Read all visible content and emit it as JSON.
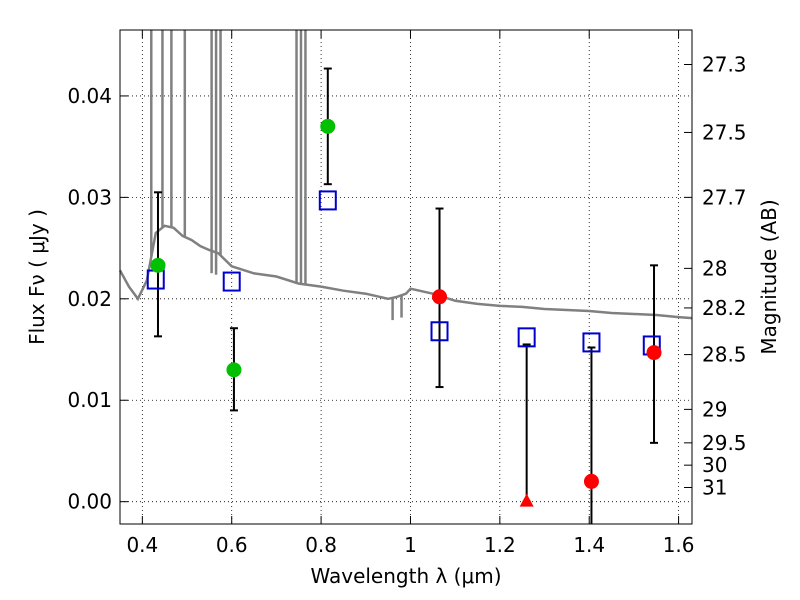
{
  "chart_data": {
    "type": "scatter",
    "xlabel": "Wavelength  λ (μm)",
    "ylabel_left": "Flux  Fν  ( μJy )",
    "ylabel_right": "Magnitude (AB)",
    "xlim": [
      0.35,
      1.63
    ],
    "ylim": [
      -0.0022,
      0.0465
    ],
    "x_ticks": [
      0.4,
      0.6,
      0.8,
      1.0,
      1.2,
      1.4,
      1.6
    ],
    "x_tick_labels": [
      "0.4",
      "0.6",
      "0.8",
      "1",
      "1.2",
      "1.4",
      "1.6"
    ],
    "y_ticks": [
      0.0,
      0.01,
      0.02,
      0.03,
      0.04
    ],
    "y_tick_labels": [
      "0.00",
      "0.01",
      "0.02",
      "0.03",
      "0.04"
    ],
    "right_ticks": [
      {
        "label": "27.3",
        "flux": 0.0431
      },
      {
        "label": "27.5",
        "flux": 0.0364
      },
      {
        "label": "27.7",
        "flux": 0.03
      },
      {
        "label": "28",
        "flux": 0.023
      },
      {
        "label": "28.2",
        "flux": 0.0191
      },
      {
        "label": "28.5",
        "flux": 0.0145
      },
      {
        "label": "29",
        "flux": 0.0091
      },
      {
        "label": "29.5",
        "flux": 0.0058
      },
      {
        "label": "30",
        "flux": 0.0036
      },
      {
        "label": "31",
        "flux": 0.0014
      }
    ],
    "grid": true,
    "colors": {
      "model": "#808080",
      "green": "#00c000",
      "red": "#ff0000",
      "square": "#0000cc",
      "errorbar": "#000000"
    },
    "model_sed": {
      "x": [
        0.35,
        0.37,
        0.39,
        0.41,
        0.43,
        0.45,
        0.47,
        0.49,
        0.51,
        0.53,
        0.55,
        0.57,
        0.6,
        0.65,
        0.7,
        0.75,
        0.8,
        0.85,
        0.9,
        0.95,
        0.97,
        0.99,
        1.0,
        1.05,
        1.1,
        1.15,
        1.2,
        1.25,
        1.3,
        1.35,
        1.4,
        1.45,
        1.5,
        1.55,
        1.6,
        1.63
      ],
      "y": [
        0.0228,
        0.0212,
        0.02,
        0.0218,
        0.0265,
        0.0272,
        0.027,
        0.0262,
        0.0258,
        0.0252,
        0.0248,
        0.0245,
        0.0232,
        0.0225,
        0.0222,
        0.0215,
        0.0212,
        0.0208,
        0.0205,
        0.02,
        0.0202,
        0.0205,
        0.021,
        0.0205,
        0.0198,
        0.0195,
        0.0193,
        0.0192,
        0.019,
        0.0189,
        0.0188,
        0.0186,
        0.0185,
        0.0184,
        0.0182,
        0.0181
      ]
    },
    "model_spikes": [
      0.42,
      0.445,
      0.465,
      0.495,
      0.555,
      0.565,
      0.575,
      0.745,
      0.755,
      0.765
    ],
    "model_dips": [
      0.555,
      0.565,
      0.96,
      0.98
    ],
    "photometry_green": [
      {
        "x": 0.435,
        "y": 0.0233,
        "err_lo": 0.0163,
        "err_hi": 0.0305
      },
      {
        "x": 0.605,
        "y": 0.013,
        "err_lo": 0.009,
        "err_hi": 0.0171
      },
      {
        "x": 0.815,
        "y": 0.037,
        "err_lo": 0.0313,
        "err_hi": 0.0427
      }
    ],
    "photometry_red": [
      {
        "x": 1.065,
        "y": 0.0202,
        "err_lo": 0.0113,
        "err_hi": 0.0289
      },
      {
        "x": 1.405,
        "y": 0.002,
        "err_lo": -0.0022,
        "err_hi": 0.0152
      },
      {
        "x": 1.545,
        "y": 0.0147,
        "err_lo": 0.0058,
        "err_hi": 0.0233
      }
    ],
    "upper_limit_red": [
      {
        "x": 1.26,
        "y": 0.0,
        "err_hi": 0.0155
      }
    ],
    "model_squares": [
      {
        "x": 0.43,
        "y": 0.0219
      },
      {
        "x": 0.6,
        "y": 0.0217
      },
      {
        "x": 0.815,
        "y": 0.0297
      },
      {
        "x": 1.065,
        "y": 0.0168
      },
      {
        "x": 1.26,
        "y": 0.0162
      },
      {
        "x": 1.405,
        "y": 0.0157
      },
      {
        "x": 1.54,
        "y": 0.0154
      }
    ]
  }
}
